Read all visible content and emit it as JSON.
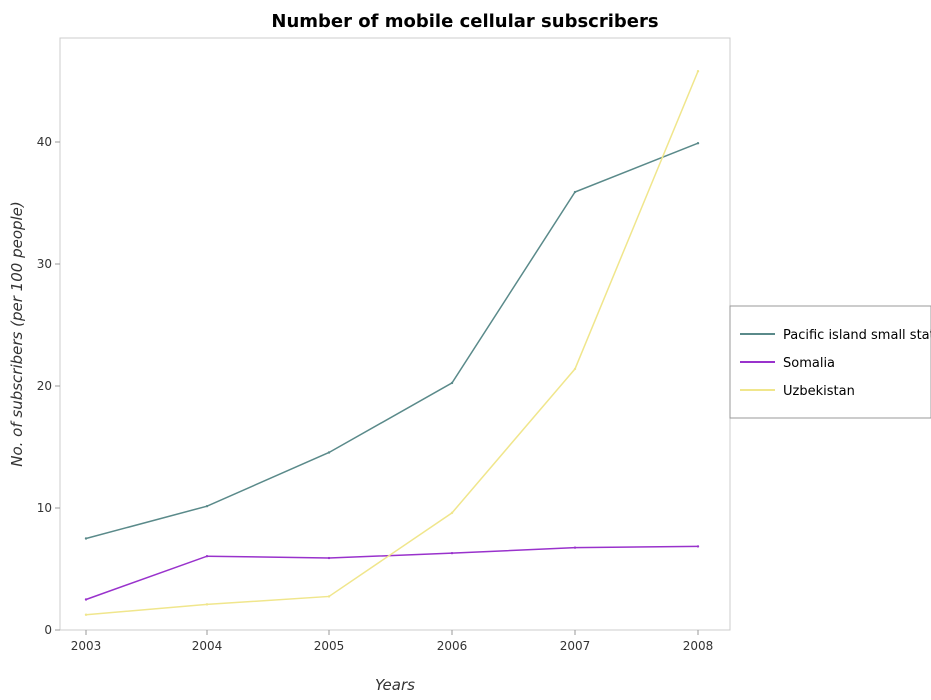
{
  "chart_data": {
    "type": "line",
    "title": "Number of mobile cellular subscribers",
    "xlabel": "Years",
    "ylabel": "No. of subscribers (per 100 people)",
    "categories": [
      "2003",
      "2004",
      "2005",
      "2006",
      "2007",
      "2008"
    ],
    "ylim": [
      0,
      48
    ],
    "yticks": [
      0,
      10,
      20,
      30,
      40
    ],
    "grid": false,
    "legend_position": "right",
    "series": [
      {
        "name": "Pacific island small states",
        "color": "#5a8a8a",
        "values": [
          7.5,
          10.15,
          14.55,
          20.25,
          35.9,
          39.9
        ]
      },
      {
        "name": "Somalia",
        "color": "#9932cc",
        "values": [
          2.5,
          6.05,
          5.9,
          6.3,
          6.75,
          6.85
        ]
      },
      {
        "name": "Uzbekistan",
        "color": "#f0e68c",
        "values": [
          1.25,
          2.1,
          2.75,
          9.6,
          21.4,
          45.8
        ]
      }
    ]
  }
}
